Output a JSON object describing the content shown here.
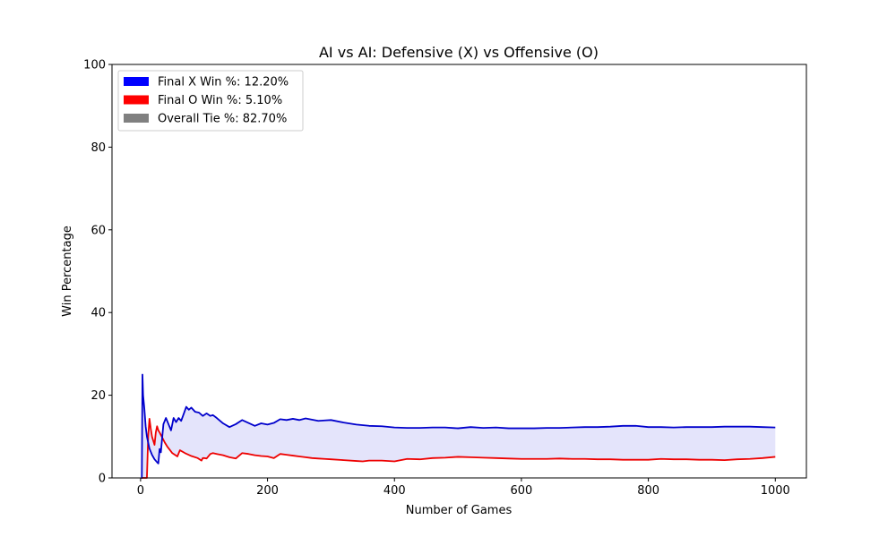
{
  "chart_data": {
    "type": "line",
    "title": "AI vs AI: Defensive (X) vs Offensive (O)",
    "xlabel": "Number of Games",
    "ylabel": "Win Percentage",
    "xlim": [
      -45,
      1049
    ],
    "ylim": [
      0,
      100
    ],
    "xticks": [
      0,
      200,
      400,
      600,
      800,
      1000
    ],
    "yticks": [
      0,
      20,
      40,
      60,
      80,
      100
    ],
    "grid": false,
    "legend_position": "top-left",
    "fill_between": true,
    "colors": {
      "x": "#0000cc",
      "o": "#ee0000",
      "fill": "#e4e4fb",
      "tie": "#808080",
      "x_legend": "#0000ff",
      "o_legend": "#ff0000"
    },
    "legend": [
      {
        "label": "Final X Win %: 12.20%",
        "color": "#0000ff"
      },
      {
        "label": "Final O Win %: 5.10%",
        "color": "#ff0000"
      },
      {
        "label": "Overall Tie %: 82.70%",
        "color": "#808080"
      }
    ],
    "series": [
      {
        "key": "x",
        "x": [
          1,
          2,
          3,
          4,
          6,
          8,
          10,
          14,
          18,
          22,
          26,
          28,
          30,
          32,
          36,
          40,
          44,
          48,
          52,
          56,
          60,
          64,
          68,
          72,
          76,
          80,
          86,
          92,
          98,
          104,
          110,
          114,
          120,
          130,
          140,
          150,
          160,
          170,
          180,
          190,
          200,
          210,
          220,
          230,
          240,
          250,
          260,
          270,
          280,
          290,
          300,
          320,
          340,
          360,
          380,
          400,
          420,
          440,
          460,
          480,
          500,
          520,
          540,
          560,
          580,
          600,
          620,
          640,
          660,
          680,
          700,
          720,
          740,
          760,
          780,
          800,
          820,
          840,
          860,
          880,
          900,
          920,
          940,
          960,
          980,
          1000
        ],
        "values": [
          0.0,
          0.0,
          25.0,
          20.0,
          16.7,
          12.5,
          10.0,
          7.1,
          5.6,
          4.5,
          3.8,
          3.5,
          7.0,
          6.2,
          13.0,
          14.5,
          13.0,
          11.5,
          14.5,
          13.5,
          14.5,
          13.8,
          15.5,
          17.2,
          16.5,
          17.0,
          16.0,
          15.8,
          15.0,
          15.6,
          15.0,
          15.2,
          14.5,
          13.2,
          12.3,
          13.0,
          14.0,
          13.3,
          12.6,
          13.2,
          12.9,
          13.3,
          14.2,
          14.0,
          14.3,
          14.0,
          14.4,
          14.1,
          13.8,
          13.9,
          14.0,
          13.4,
          12.9,
          12.6,
          12.5,
          12.2,
          12.1,
          12.1,
          12.2,
          12.2,
          12.0,
          12.3,
          12.1,
          12.2,
          12.0,
          12.0,
          12.0,
          12.1,
          12.1,
          12.2,
          12.3,
          12.3,
          12.4,
          12.6,
          12.6,
          12.3,
          12.3,
          12.2,
          12.3,
          12.3,
          12.3,
          12.4,
          12.4,
          12.4,
          12.3,
          12.2
        ]
      },
      {
        "key": "o",
        "x": [
          1,
          4,
          8,
          10,
          12,
          14,
          16,
          18,
          20,
          22,
          24,
          26,
          28,
          30,
          34,
          38,
          42,
          46,
          50,
          54,
          58,
          62,
          70,
          80,
          90,
          96,
          98,
          100,
          104,
          110,
          114,
          120,
          130,
          140,
          150,
          160,
          170,
          180,
          190,
          200,
          210,
          220,
          230,
          240,
          250,
          260,
          270,
          280,
          290,
          300,
          320,
          340,
          350,
          360,
          380,
          400,
          420,
          440,
          460,
          480,
          500,
          520,
          540,
          560,
          580,
          600,
          620,
          640,
          660,
          680,
          700,
          720,
          740,
          760,
          780,
          800,
          820,
          840,
          860,
          880,
          900,
          920,
          940,
          960,
          980,
          1000
        ],
        "values": [
          0.0,
          0.0,
          0.0,
          0.0,
          10.0,
          14.3,
          12.0,
          10.0,
          9.0,
          8.0,
          11.0,
          12.5,
          11.5,
          11.0,
          9.8,
          8.6,
          7.6,
          6.8,
          6.0,
          5.6,
          5.2,
          6.7,
          6.0,
          5.3,
          4.8,
          4.2,
          4.8,
          4.8,
          4.7,
          5.8,
          6.0,
          5.8,
          5.5,
          5.0,
          4.7,
          6.0,
          5.8,
          5.5,
          5.3,
          5.2,
          4.8,
          5.8,
          5.6,
          5.4,
          5.2,
          5.0,
          4.8,
          4.7,
          4.6,
          4.5,
          4.3,
          4.1,
          4.0,
          4.2,
          4.2,
          4.0,
          4.6,
          4.5,
          4.8,
          4.9,
          5.1,
          5.0,
          4.9,
          4.8,
          4.7,
          4.6,
          4.6,
          4.6,
          4.7,
          4.6,
          4.6,
          4.5,
          4.5,
          4.4,
          4.4,
          4.4,
          4.6,
          4.5,
          4.5,
          4.4,
          4.4,
          4.3,
          4.5,
          4.6,
          4.8,
          5.1
        ]
      }
    ]
  }
}
